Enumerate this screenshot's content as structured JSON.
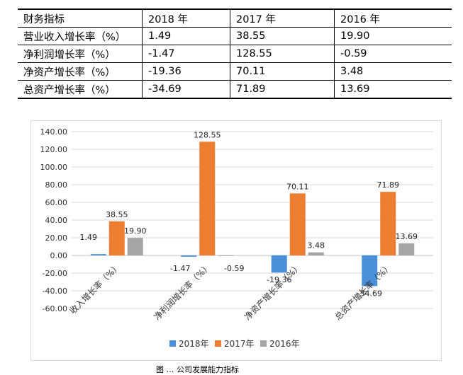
{
  "table": {
    "headers": [
      "财务指标",
      "2018 年",
      "2017 年",
      "2016 年"
    ],
    "rows": [
      [
        "营业收入增长率（%）",
        "1.49",
        "38.55",
        "19.90"
      ],
      [
        "净利润增长率（%）",
        "-1.47",
        "128.55",
        "-0.59"
      ],
      [
        "净资产增长率（%）",
        "-19.36",
        "70.11",
        "3.48"
      ],
      [
        "总资产增长率（%）",
        "-34.69",
        "71.89",
        "13.69"
      ]
    ]
  },
  "chart_data": {
    "type": "bar",
    "categories": [
      "收入增长率（%）",
      "净利润增长率（%）",
      "净资产增长率（%）",
      "总资产增长率（%）"
    ],
    "series": [
      {
        "name": "2018年",
        "color": "#4a90d9",
        "values": [
          1.49,
          -1.47,
          -19.36,
          -34.69
        ],
        "labels": [
          "1.49",
          "-1.47",
          "-19.36",
          "-34.69"
        ]
      },
      {
        "name": "2017年",
        "color": "#ed7d31",
        "values": [
          38.55,
          128.55,
          70.11,
          71.89
        ],
        "labels": [
          "38.55",
          "128.55",
          "70.11",
          "71.89"
        ]
      },
      {
        "name": "2016年",
        "color": "#a5a5a5",
        "values": [
          19.9,
          -0.59,
          3.48,
          13.69
        ],
        "labels": [
          "19.90",
          "-0.59",
          "3.48",
          "13.69"
        ]
      }
    ],
    "ylim": [
      -60,
      140
    ],
    "yticks": [
      "140.00",
      "120.00",
      "100.00",
      "80.00",
      "60.00",
      "40.00",
      "20.00",
      "0.00",
      "-20.00",
      "-40.00",
      "-60.00"
    ],
    "legend": "bottom",
    "grid": true
  },
  "caption": "图 … 公司发展能力指标"
}
